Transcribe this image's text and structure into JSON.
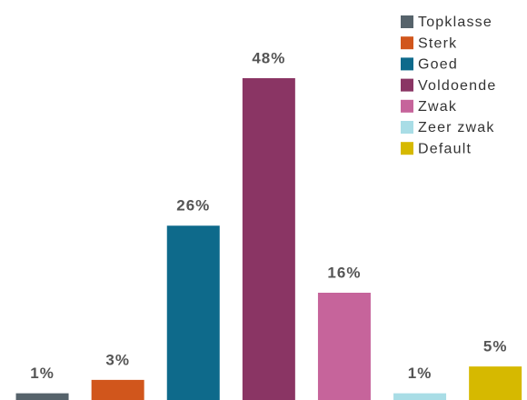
{
  "chart_data": {
    "type": "bar",
    "categories": [
      "Topklasse",
      "Sterk",
      "Goed",
      "Voldoende",
      "Zwak",
      "Zeer zwak",
      "Default"
    ],
    "values": [
      1,
      3,
      26,
      48,
      16,
      1,
      5
    ],
    "value_labels": [
      "1%",
      "3%",
      "26%",
      "48%",
      "16%",
      "1%",
      "5%"
    ],
    "colors": [
      "#56636b",
      "#d1561c",
      "#0e6a8b",
      "#8a3564",
      "#c6649b",
      "#a9dde6",
      "#d6b900"
    ],
    "legend": "top-right"
  }
}
